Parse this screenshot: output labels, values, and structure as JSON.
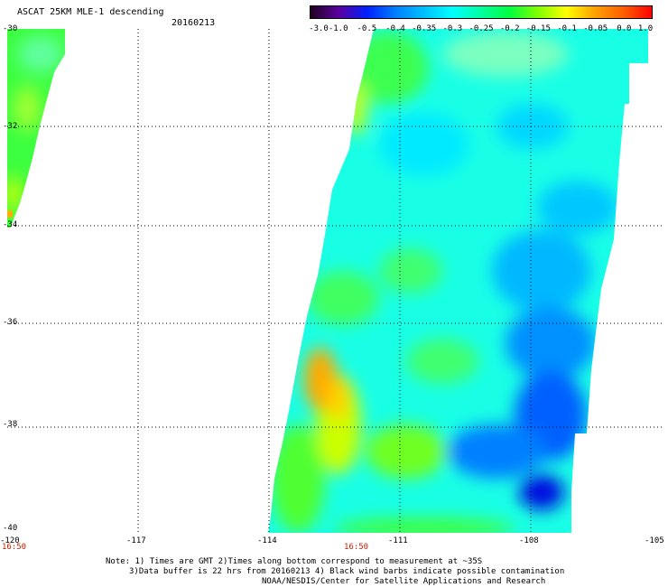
{
  "header": {
    "title": "ASCAT 25KM MLE-1 descending",
    "date": "20160213"
  },
  "legend": {
    "labels": [
      "-3.0",
      "-1.0",
      "-0.5",
      "-0.4",
      "-0.35",
      "-0.3",
      "-0.25",
      "-0.2",
      "-0.15",
      "-0.1",
      "-0.05",
      "0.0",
      "1.0"
    ],
    "colors": [
      "#200020",
      "#5a00a0",
      "#0020ff",
      "#0080ff",
      "#00c0ff",
      "#00ffff",
      "#00ffa0",
      "#00ff40",
      "#80ff00",
      "#ffff00",
      "#ffa000",
      "#ff6000",
      "#ff0000"
    ]
  },
  "axes": {
    "lat_ticks": [
      "-30",
      "-32",
      "-34",
      "-36",
      "-38",
      "-40"
    ],
    "lon_ticks": [
      "-120",
      "-117",
      "-114",
      "-111",
      "-108",
      "-105"
    ],
    "time_labels": [
      "16:50",
      "16:50"
    ]
  },
  "notes": {
    "line1": "Note: 1) Times are GMT 2)Times along bottom correspond to measurement at ~35S",
    "line2": "3)Data buffer is 22 hrs from 20160213 4) Black wind barbs indicate possible contamination",
    "line3": "NOAA/NESDIS/Center for Satellite Applications and Research"
  }
}
